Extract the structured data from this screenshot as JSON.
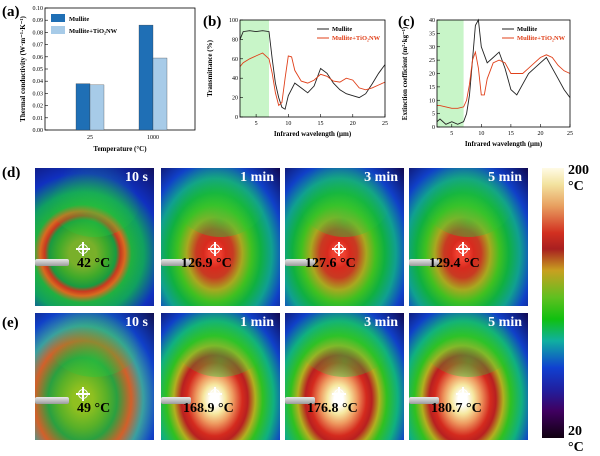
{
  "panels": {
    "a": "(a)",
    "b": "(b)",
    "c": "(c)",
    "d": "(d)",
    "e": "(e)"
  },
  "colors": {
    "mullite_bar": "#1f6fb5",
    "tio2_bar": "#a7cbe8",
    "mullite_line": "#222222",
    "tio2_line": "#e0401a",
    "highlight": "#c8f5c8"
  },
  "chart_a": {
    "type": "bar",
    "ylabel": "Thermal conductivity (W·m⁻¹·K⁻¹)",
    "xlabel": "Temperature (°C)",
    "categories": [
      "25",
      "1000"
    ],
    "ylim": [
      0,
      0.1
    ],
    "yticks": [
      "0.00",
      "0.01",
      "0.02",
      "0.03",
      "0.04",
      "0.05",
      "0.06",
      "0.07",
      "0.08",
      "0.09",
      "0.10"
    ],
    "series": [
      {
        "name": "Mullite",
        "values": [
          0.038,
          0.086
        ]
      },
      {
        "name": "Mullite+TiO2NW",
        "values": [
          0.037,
          0.059
        ]
      }
    ],
    "legend": [
      "Mullite",
      "Mullite+TiO₂NW"
    ]
  },
  "chart_b": {
    "type": "line",
    "ylabel": "Transmittance (%)",
    "xlabel": "Infrared wavelength (μm)",
    "xlim": [
      2.5,
      25
    ],
    "ylim": [
      0,
      100
    ],
    "xticks": [
      "5",
      "10",
      "15",
      "20",
      "25"
    ],
    "yticks": [
      "0",
      "20",
      "40",
      "60",
      "80",
      "100"
    ],
    "highlight": [
      2.5,
      7
    ],
    "legend": [
      "Mullite",
      "Mullite+TiO₂NW"
    ],
    "series": [
      {
        "name": "Mullite",
        "x": [
          2.5,
          3,
          4,
          5,
          6,
          7,
          7.5,
          8,
          8.5,
          9,
          9.5,
          10,
          11,
          12,
          13,
          14,
          15,
          16,
          17,
          18,
          19,
          20,
          21,
          22,
          23,
          24,
          25
        ],
        "y": [
          80,
          88,
          89,
          88,
          89,
          88,
          60,
          35,
          20,
          10,
          8,
          22,
          35,
          30,
          25,
          32,
          50,
          45,
          35,
          28,
          24,
          22,
          20,
          24,
          34,
          45,
          54
        ]
      },
      {
        "name": "Mullite+TiO2NW",
        "x": [
          2.5,
          3,
          4,
          5,
          6,
          7,
          7.5,
          8,
          8.5,
          9,
          9.5,
          10,
          10.5,
          11,
          12,
          13,
          14,
          15,
          16,
          17,
          18,
          19,
          20,
          21,
          22,
          23,
          24,
          25
        ],
        "y": [
          52,
          56,
          60,
          63,
          66,
          60,
          45,
          25,
          12,
          15,
          40,
          63,
          62,
          48,
          37,
          35,
          38,
          44,
          42,
          37,
          36,
          40,
          38,
          30,
          28,
          30,
          33,
          36
        ]
      }
    ]
  },
  "chart_c": {
    "type": "line",
    "ylabel": "Extinction coefficient (m²·kg⁻¹)",
    "xlabel": "Infrared wavelength (μm)",
    "xlim": [
      2.5,
      25
    ],
    "ylim": [
      0,
      40
    ],
    "xticks": [
      "5",
      "10",
      "15",
      "20",
      "25"
    ],
    "yticks": [
      "0",
      "5",
      "10",
      "15",
      "20",
      "25",
      "30",
      "35",
      "40"
    ],
    "highlight": [
      2.5,
      7
    ],
    "legend": [
      "Mullite",
      "Mullite+TiO₂NW"
    ],
    "series": [
      {
        "name": "Mullite",
        "x": [
          2.5,
          3,
          4,
          5,
          6,
          7,
          7.5,
          8,
          8.5,
          9,
          9.5,
          10,
          11,
          12,
          13,
          14,
          15,
          16,
          17,
          18,
          19,
          20,
          21,
          22,
          23,
          24,
          25
        ],
        "y": [
          2,
          3,
          1,
          2,
          1,
          2,
          5,
          12,
          25,
          38,
          40,
          30,
          24,
          26,
          28,
          22,
          14,
          12,
          16,
          20,
          22,
          24,
          26,
          22,
          18,
          14,
          11
        ]
      },
      {
        "name": "Mullite+TiO2NW",
        "x": [
          2.5,
          3,
          4,
          5,
          6,
          7,
          7.5,
          8,
          8.5,
          9,
          9.5,
          10,
          10.5,
          11,
          12,
          13,
          14,
          15,
          16,
          17,
          18,
          19,
          20,
          21,
          22,
          23,
          24,
          25
        ],
        "y": [
          8,
          8,
          7.5,
          7,
          7,
          7.5,
          10,
          16,
          25,
          28,
          22,
          12,
          12,
          18,
          24,
          25,
          24,
          20,
          20,
          20,
          22,
          24,
          26,
          27,
          26,
          23,
          21,
          20
        ]
      }
    ]
  },
  "thermal": {
    "row_d": [
      {
        "time": "10 s",
        "temp": "42 °C"
      },
      {
        "time": "1 min",
        "temp": "126.9 °C"
      },
      {
        "time": "3 min",
        "temp": "127.6 °C"
      },
      {
        "time": "5 min",
        "temp": "129.4 °C"
      }
    ],
    "row_e": [
      {
        "time": "10 s",
        "temp": "49 °C"
      },
      {
        "time": "1 min",
        "temp": "168.9 °C"
      },
      {
        "time": "3 min",
        "temp": "176.8 °C"
      },
      {
        "time": "5 min",
        "temp": "180.7 °C"
      }
    ]
  },
  "colorbar": {
    "max": "200 °C",
    "min": "20 °C"
  }
}
